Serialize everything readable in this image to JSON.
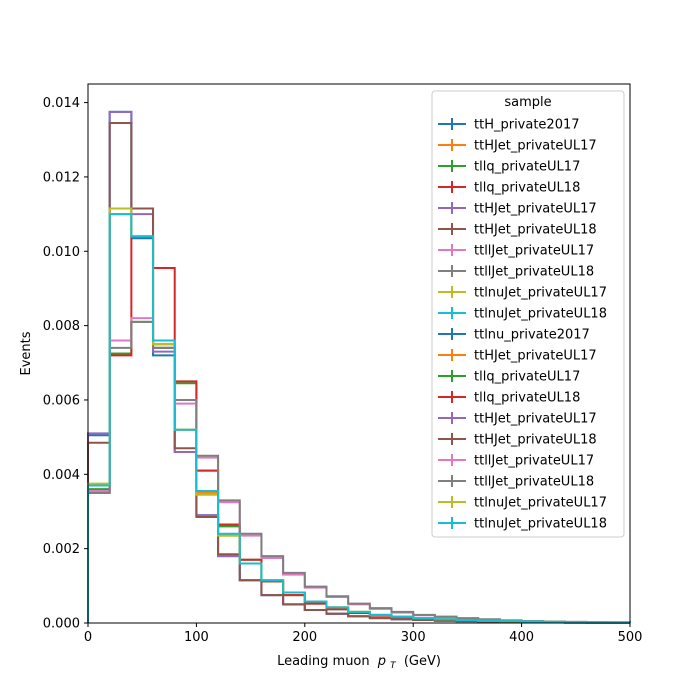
{
  "chart_data": {
    "type": "line",
    "step": true,
    "xlabel": "Leading muon",
    "xlabel_symbol": "p",
    "xlabel_sub": "T",
    "xlabel_unit": "(GeV)",
    "ylabel": "Events",
    "xlim": [
      0,
      500
    ],
    "ylim": [
      0,
      0.0145
    ],
    "x_ticks": [
      0,
      100,
      200,
      300,
      400,
      500
    ],
    "x_tick_labels": [
      "0",
      "100",
      "200",
      "300",
      "400",
      "500"
    ],
    "y_ticks": [
      0,
      0.002,
      0.004,
      0.006,
      0.008,
      0.01,
      0.012,
      0.014
    ],
    "y_tick_labels": [
      "0.000",
      "0.002",
      "0.004",
      "0.006",
      "0.008",
      "0.010",
      "0.012",
      "0.014"
    ],
    "grid": false,
    "legend_position": "top-right",
    "legend_title": "sample",
    "bin_edges": [
      0,
      20,
      40,
      60,
      80,
      100,
      120,
      140,
      160,
      180,
      200,
      220,
      240,
      260,
      280,
      300,
      320,
      340,
      360,
      380,
      400,
      420,
      440,
      460,
      480,
      500
    ],
    "series": [
      {
        "name": "ttH_private2017",
        "color": "#1f77b4",
        "values": [
          0.00505,
          0.01375,
          0.01035,
          0.0072,
          0.0046,
          0.0029,
          0.0018,
          0.00115,
          0.00075,
          0.0005,
          0.00035,
          0.00025,
          0.00018,
          0.00013,
          0.0001,
          8e-05,
          6e-05,
          5e-05,
          4e-05,
          3e-05,
          2e-05,
          2e-05,
          1e-05,
          1e-05,
          1e-05
        ]
      },
      {
        "name": "ttHJet_privateUL17",
        "color": "#ff7f0e",
        "values": [
          0.0037,
          0.011,
          0.0104,
          0.0075,
          0.0052,
          0.0035,
          0.00235,
          0.0016,
          0.00115,
          0.00082,
          0.00058,
          0.00042,
          0.0003,
          0.00022,
          0.00017,
          0.00013,
          0.0001,
          8e-05,
          6e-05,
          5e-05,
          4e-05,
          3e-05,
          2e-05,
          2e-05,
          1e-05
        ]
      },
      {
        "name": "tllq_privateUL17",
        "color": "#2ca02c",
        "values": [
          0.0036,
          0.00725,
          0.0081,
          0.0074,
          0.00645,
          0.0041,
          0.0026,
          0.0017,
          0.00112,
          0.00075,
          0.00052,
          0.00037,
          0.00027,
          0.0002,
          0.00015,
          0.00011,
          8e-05,
          6e-05,
          5e-05,
          4e-05,
          3e-05,
          2e-05,
          2e-05,
          1e-05,
          1e-05
        ]
      },
      {
        "name": "tllq_privateUL18",
        "color": "#d62728",
        "values": [
          0.0035,
          0.0072,
          0.0104,
          0.00955,
          0.0065,
          0.0041,
          0.00265,
          0.0017,
          0.00112,
          0.00075,
          0.00052,
          0.00037,
          0.00027,
          0.0002,
          0.00015,
          0.00011,
          8e-05,
          6e-05,
          5e-05,
          4e-05,
          3e-05,
          2e-05,
          2e-05,
          1e-05,
          1e-05
        ]
      },
      {
        "name": "ttHJet_privateUL17",
        "color": "#9467bd",
        "values": [
          0.0051,
          0.01375,
          0.011,
          0.0073,
          0.0046,
          0.0029,
          0.0018,
          0.00115,
          0.00075,
          0.0005,
          0.00035,
          0.00025,
          0.00018,
          0.00013,
          0.0001,
          8e-05,
          6e-05,
          5e-05,
          4e-05,
          3e-05,
          2e-05,
          2e-05,
          1e-05,
          1e-05,
          1e-05
        ]
      },
      {
        "name": "ttHJet_privateUL18",
        "color": "#8c564b",
        "values": [
          0.00485,
          0.01345,
          0.01115,
          0.0074,
          0.0047,
          0.00285,
          0.00185,
          0.00115,
          0.00075,
          0.0005,
          0.00035,
          0.00025,
          0.00018,
          0.00013,
          0.0001,
          8e-05,
          6e-05,
          5e-05,
          4e-05,
          3e-05,
          2e-05,
          2e-05,
          1e-05,
          1e-05,
          1e-05
        ]
      },
      {
        "name": "ttllJet_privateUL17",
        "color": "#e377c2",
        "values": [
          0.00355,
          0.0076,
          0.0082,
          0.0075,
          0.0059,
          0.00445,
          0.00325,
          0.00235,
          0.00175,
          0.0013,
          0.00095,
          0.0007,
          0.0005,
          0.00038,
          0.00028,
          0.00021,
          0.00016,
          0.00012,
          9e-05,
          7e-05,
          5e-05,
          4e-05,
          3e-05,
          2e-05,
          2e-05
        ]
      },
      {
        "name": "ttllJet_privateUL18",
        "color": "#7f7f7f",
        "values": [
          0.0035,
          0.0074,
          0.0081,
          0.0074,
          0.006,
          0.0045,
          0.0033,
          0.0024,
          0.0018,
          0.00135,
          0.00098,
          0.00072,
          0.00052,
          0.0004,
          0.0003,
          0.00022,
          0.00017,
          0.00013,
          0.0001,
          7e-05,
          5e-05,
          4e-05,
          3e-05,
          2e-05,
          2e-05
        ]
      },
      {
        "name": "ttlnuJet_privateUL17",
        "color": "#bcbd22",
        "values": [
          0.00375,
          0.01115,
          0.0104,
          0.0075,
          0.0052,
          0.00345,
          0.00235,
          0.0016,
          0.00115,
          0.00082,
          0.00058,
          0.00042,
          0.0003,
          0.00022,
          0.00017,
          0.00013,
          0.0001,
          8e-05,
          6e-05,
          5e-05,
          4e-05,
          3e-05,
          2e-05,
          2e-05,
          1e-05
        ]
      },
      {
        "name": "ttlnuJet_privateUL18",
        "color": "#17becf",
        "values": [
          0.0037,
          0.011,
          0.0104,
          0.0076,
          0.0052,
          0.00355,
          0.0024,
          0.0016,
          0.00115,
          0.00082,
          0.00058,
          0.00042,
          0.0003,
          0.00022,
          0.00017,
          0.00013,
          0.0001,
          8e-05,
          6e-05,
          5e-05,
          4e-05,
          3e-05,
          2e-05,
          2e-05,
          1e-05
        ]
      }
    ],
    "legend_entries": [
      {
        "name": "ttH_private2017",
        "color": "#1f77b4"
      },
      {
        "name": "ttHJet_privateUL17",
        "color": "#ff7f0e"
      },
      {
        "name": "tllq_privateUL17",
        "color": "#2ca02c"
      },
      {
        "name": "tllq_privateUL18",
        "color": "#d62728"
      },
      {
        "name": "ttHJet_privateUL17",
        "color": "#9467bd"
      },
      {
        "name": "ttHJet_privateUL18",
        "color": "#8c564b"
      },
      {
        "name": "ttllJet_privateUL17",
        "color": "#e377c2"
      },
      {
        "name": "ttllJet_privateUL18",
        "color": "#7f7f7f"
      },
      {
        "name": "ttlnuJet_privateUL17",
        "color": "#bcbd22"
      },
      {
        "name": "ttlnuJet_privateUL18",
        "color": "#17becf"
      },
      {
        "name": "ttlnu_private2017",
        "color": "#1f77b4"
      },
      {
        "name": "ttHJet_privateUL17",
        "color": "#ff7f0e"
      },
      {
        "name": "tllq_privateUL17",
        "color": "#2ca02c"
      },
      {
        "name": "tllq_privateUL18",
        "color": "#d62728"
      },
      {
        "name": "ttHJet_privateUL17",
        "color": "#9467bd"
      },
      {
        "name": "ttHJet_privateUL18",
        "color": "#8c564b"
      },
      {
        "name": "ttllJet_privateUL17",
        "color": "#e377c2"
      },
      {
        "name": "ttllJet_privateUL18",
        "color": "#7f7f7f"
      },
      {
        "name": "ttlnuJet_privateUL17",
        "color": "#bcbd22"
      },
      {
        "name": "ttlnuJet_privateUL18",
        "color": "#17becf"
      }
    ]
  }
}
